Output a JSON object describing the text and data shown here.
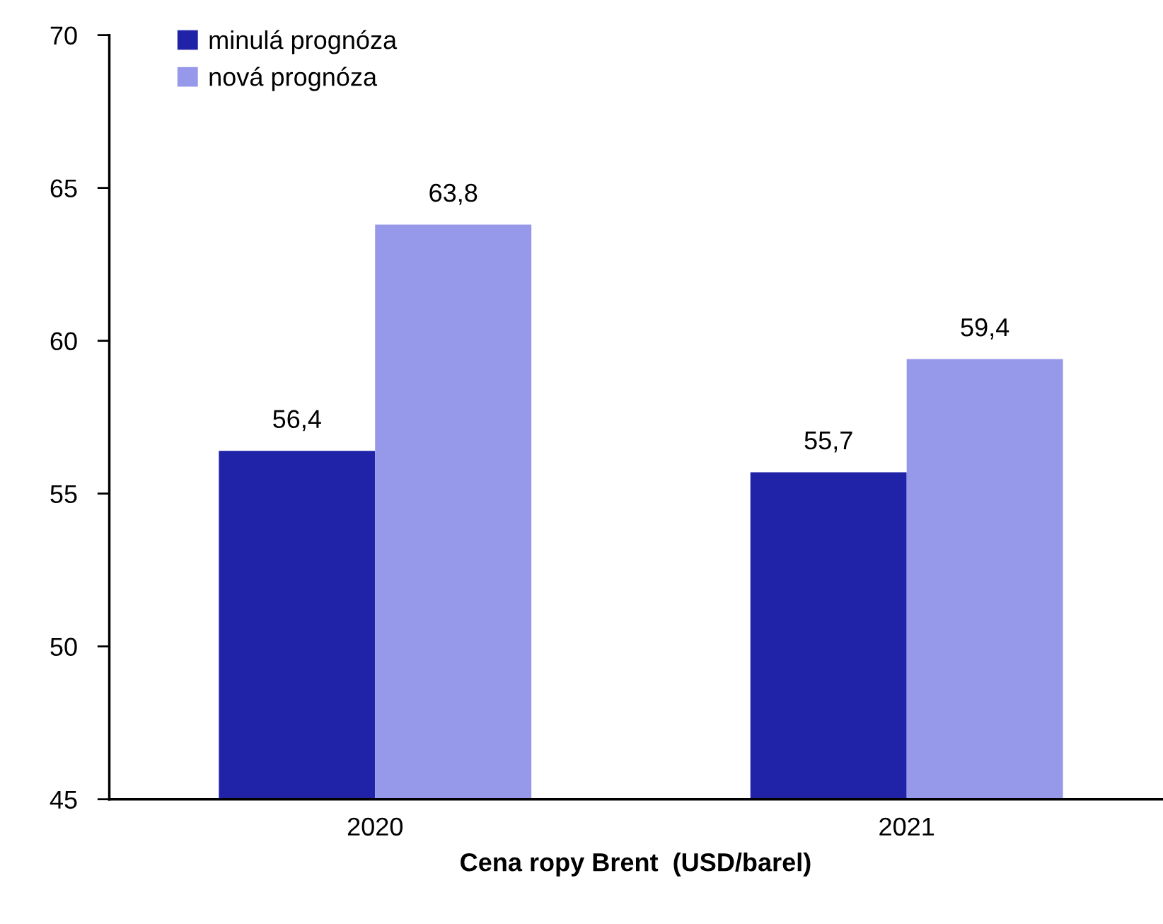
{
  "chart_data": {
    "type": "bar",
    "xlabel": "Cena ropy Brent  (USD/barel)",
    "categories": [
      "2020",
      "2021"
    ],
    "series": [
      {
        "name": "minulá prognóza",
        "color": "#2022a8",
        "values": [
          56.4,
          55.7
        ],
        "value_labels": [
          "56,4",
          "55,7"
        ]
      },
      {
        "name": "nová prognóza",
        "color": "#9698ea",
        "values": [
          63.8,
          59.4
        ],
        "value_labels": [
          "63,8",
          "59,4"
        ]
      }
    ],
    "ylim": [
      45,
      70
    ],
    "yticks": [
      45,
      50,
      55,
      60,
      65,
      70
    ],
    "grid": false,
    "legend": "top left"
  }
}
